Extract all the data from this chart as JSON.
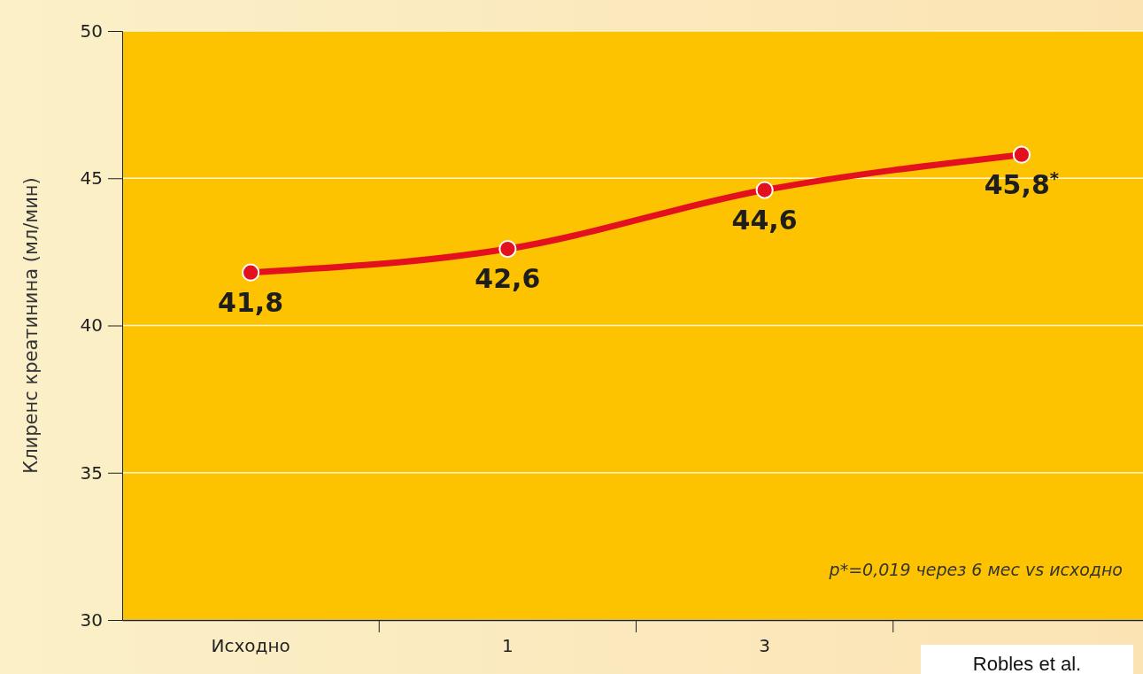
{
  "chart_data": {
    "type": "line",
    "ylabel": "Клиренс креатинина (мл/мин)",
    "categories": [
      "Исходно",
      "1",
      "3",
      null
    ],
    "series": [
      {
        "color": "#e3101e",
        "values": [
          41.8,
          42.6,
          44.6,
          45.8
        ],
        "value_labels": [
          "41,8",
          "42,6",
          "44,6",
          "45,8$^{*}$"
        ]
      }
    ],
    "ylim": [
      30,
      50
    ],
    "yticks": [
      30,
      35,
      40,
      45,
      50
    ],
    "grid": "y",
    "marker": "circle",
    "line_style": "solid",
    "annotations": [
      "p*=0,019 через 6 мес vs исходно",
      "Robles et al."
    ]
  }
}
